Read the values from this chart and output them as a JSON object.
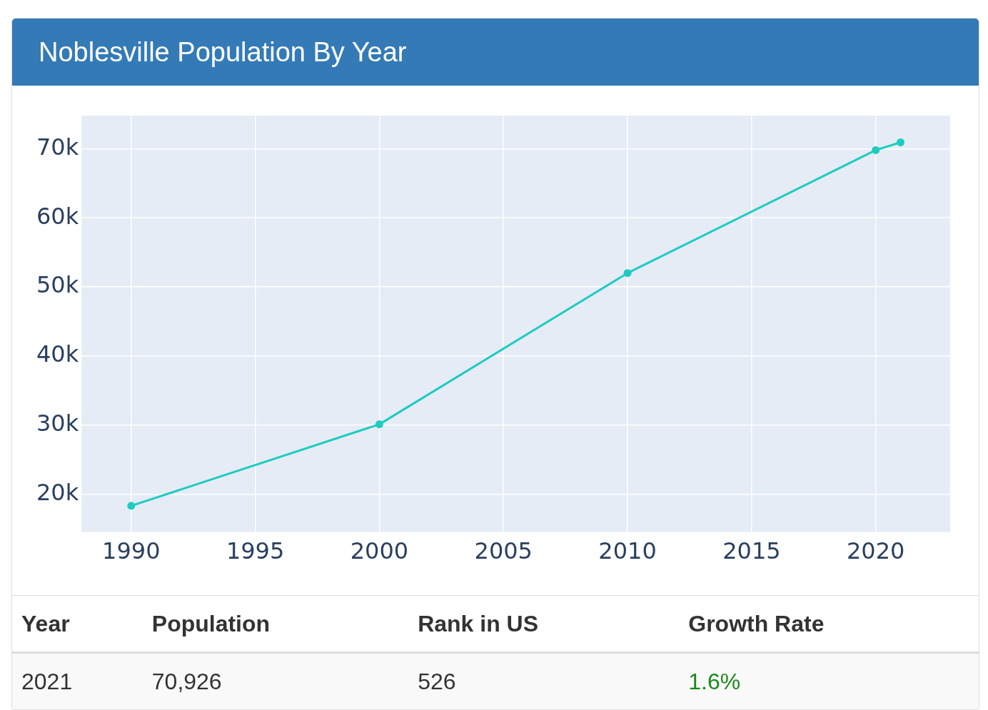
{
  "chart_data": {
    "type": "line",
    "title": "Noblesville Population By Year",
    "x": [
      1990,
      2000,
      2010,
      2020,
      2021
    ],
    "series": [
      {
        "color": "#1ecbc0",
        "values": [
          18300,
          30100,
          52000,
          69800,
          70926
        ]
      }
    ],
    "xlim": [
      1988,
      2023
    ],
    "xticks": [
      1990,
      1995,
      2000,
      2005,
      2010,
      2015,
      2020
    ],
    "ylim": [
      14500,
      74800
    ],
    "yticks": [
      {
        "value": 20000,
        "label": "20k"
      },
      {
        "value": 30000,
        "label": "30k"
      },
      {
        "value": 40000,
        "label": "40k"
      },
      {
        "value": 50000,
        "label": "50k"
      },
      {
        "value": 60000,
        "label": "60k"
      },
      {
        "value": 70000,
        "label": "70k"
      }
    ],
    "grid": true,
    "legend": false,
    "marker": "circle",
    "line_style": "solid",
    "annotations": [
      "Year",
      "Population",
      "Rank in US",
      "Growth Rate",
      "2021",
      "70,926",
      "526",
      "1.6%"
    ]
  }
}
